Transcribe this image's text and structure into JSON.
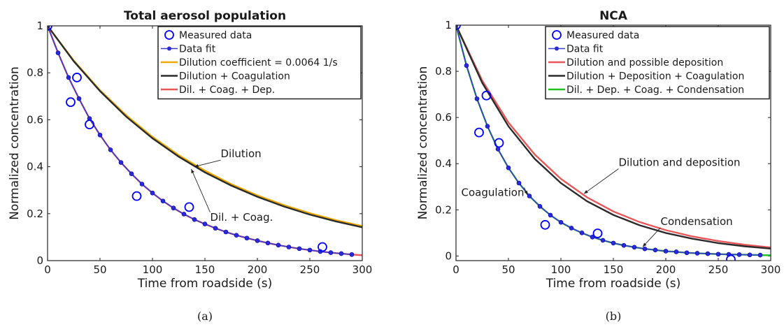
{
  "chart_data": [
    {
      "type": "line",
      "panel_label": "(a)",
      "title": "Total aerosol population",
      "xlabel": "Time from roadside (s)",
      "ylabel": "Normalized concentration",
      "xlim": [
        0,
        300
      ],
      "ylim": [
        0,
        1
      ],
      "xticks": [
        0,
        50,
        100,
        150,
        200,
        250,
        300
      ],
      "yticks": [
        0,
        0.2,
        0.4,
        0.6,
        0.8,
        1
      ],
      "ytick_labels": [
        "0",
        "0.2",
        "0.4",
        "0.6",
        "0.8",
        "1"
      ],
      "grid": false,
      "legend_position": "top-right",
      "series": [
        {
          "name": "Measured data",
          "kind": "marker",
          "color": "#0000ff",
          "x": [
            0,
            22,
            28,
            40,
            85,
            135,
            262
          ],
          "y": [
            1.0,
            0.675,
            0.78,
            0.58,
            0.275,
            0.228,
            0.058
          ]
        },
        {
          "name": "Data fit",
          "kind": "line-dots",
          "color": "#3a3acf",
          "x": [
            0,
            10,
            20,
            30,
            40,
            50,
            60,
            70,
            80,
            90,
            100,
            110,
            120,
            130,
            140,
            150,
            160,
            170,
            180,
            190,
            200,
            210,
            220,
            230,
            240,
            250,
            260,
            270,
            280,
            290
          ],
          "y": [
            1.0,
            0.885,
            0.78,
            0.69,
            0.605,
            0.535,
            0.472,
            0.418,
            0.37,
            0.326,
            0.288,
            0.254,
            0.224,
            0.198,
            0.175,
            0.156,
            0.138,
            0.122,
            0.108,
            0.096,
            0.085,
            0.075,
            0.066,
            0.058,
            0.051,
            0.045,
            0.039,
            0.034,
            0.03,
            0.026
          ]
        },
        {
          "name": "Dilution coefficient = 0.0064 1/s",
          "kind": "line",
          "color": "#f0a800",
          "x": [
            0,
            25,
            50,
            75,
            100,
            125,
            150,
            175,
            200,
            225,
            250,
            275,
            300
          ],
          "y": [
            1.0,
            0.852,
            0.726,
            0.619,
            0.527,
            0.449,
            0.383,
            0.326,
            0.278,
            0.237,
            0.202,
            0.172,
            0.147
          ]
        },
        {
          "name": "Dilution + Coagulation",
          "kind": "line",
          "color": "#2b2b2b",
          "x": [
            0,
            25,
            50,
            75,
            100,
            125,
            150,
            175,
            200,
            225,
            250,
            275,
            300
          ],
          "y": [
            1.0,
            0.849,
            0.722,
            0.613,
            0.521,
            0.443,
            0.376,
            0.32,
            0.272,
            0.231,
            0.196,
            0.167,
            0.142
          ]
        },
        {
          "name": "Dil. + Coag. + Dep.",
          "kind": "line",
          "color": "#e8585a",
          "x": [
            0,
            10,
            20,
            30,
            40,
            50,
            60,
            70,
            80,
            90,
            100,
            110,
            120,
            130,
            140,
            150,
            160,
            170,
            180,
            190,
            200,
            210,
            220,
            230,
            240,
            250,
            260,
            270,
            280,
            290,
            300
          ],
          "y": [
            1.0,
            0.885,
            0.78,
            0.69,
            0.605,
            0.535,
            0.472,
            0.418,
            0.37,
            0.326,
            0.288,
            0.254,
            0.224,
            0.198,
            0.175,
            0.156,
            0.138,
            0.122,
            0.108,
            0.096,
            0.085,
            0.075,
            0.066,
            0.058,
            0.051,
            0.045,
            0.039,
            0.034,
            0.03,
            0.026,
            0.023
          ]
        }
      ],
      "annotations": [
        {
          "text": "Dilution",
          "text_x": 165,
          "text_y": 0.44,
          "arrow_to_x": 140,
          "arrow_to_y": 0.4
        },
        {
          "text": "Dil. + Coag.",
          "text_x": 155,
          "text_y": 0.17,
          "arrow_to_x": 137,
          "arrow_to_y": 0.39
        }
      ]
    },
    {
      "type": "line",
      "panel_label": "(b)",
      "title": "NCA",
      "xlabel": "Time from roadside (s)",
      "ylabel": "Normalized concentration",
      "xlim": [
        0,
        300
      ],
      "ylim": [
        -0.02,
        1
      ],
      "xticks": [
        0,
        50,
        100,
        150,
        200,
        250,
        300
      ],
      "yticks": [
        0,
        0.2,
        0.4,
        0.6,
        0.8,
        1
      ],
      "ytick_labels": [
        "0",
        "0.2",
        "0.4",
        "0.6",
        "0.8",
        "1"
      ],
      "grid": false,
      "legend_position": "top-right",
      "series": [
        {
          "name": "Measured data",
          "kind": "marker",
          "color": "#0000ff",
          "x": [
            0,
            22,
            29,
            41,
            85,
            135,
            262
          ],
          "y": [
            1.0,
            0.535,
            0.695,
            0.49,
            0.135,
            0.098,
            -0.015
          ]
        },
        {
          "name": "Data fit",
          "kind": "line-dots",
          "color": "#3a3acf",
          "x": [
            0,
            10,
            20,
            30,
            40,
            50,
            60,
            70,
            80,
            90,
            100,
            110,
            120,
            130,
            140,
            150,
            160,
            170,
            180,
            190,
            200,
            210,
            220,
            230,
            240,
            250,
            260,
            270,
            280,
            290
          ],
          "y": [
            1.0,
            0.825,
            0.681,
            0.562,
            0.463,
            0.382,
            0.316,
            0.26,
            0.215,
            0.177,
            0.146,
            0.121,
            0.1,
            0.082,
            0.068,
            0.056,
            0.046,
            0.038,
            0.031,
            0.026,
            0.021,
            0.018,
            0.014,
            0.012,
            0.01,
            0.008,
            0.007,
            0.006,
            0.005,
            0.004
          ]
        },
        {
          "name": "Dilution and possible deposition",
          "kind": "line",
          "color": "#e8585a",
          "x": [
            0,
            25,
            50,
            75,
            100,
            125,
            150,
            175,
            200,
            225,
            250,
            275,
            300
          ],
          "y": [
            1.0,
            0.76,
            0.578,
            0.44,
            0.334,
            0.254,
            0.193,
            0.147,
            0.112,
            0.085,
            0.065,
            0.049,
            0.037
          ]
        },
        {
          "name": "Dilution + Deposition + Coagulation",
          "kind": "line",
          "color": "#2b2b2b",
          "x": [
            0,
            25,
            50,
            75,
            100,
            125,
            150,
            175,
            200,
            225,
            250,
            275,
            300
          ],
          "y": [
            1.0,
            0.75,
            0.562,
            0.421,
            0.316,
            0.237,
            0.178,
            0.133,
            0.1,
            0.075,
            0.056,
            0.042,
            0.032
          ]
        },
        {
          "name": "Dil. + Dep. + Coag. + Condensation",
          "kind": "line",
          "color": "#22c022",
          "x": [
            0,
            10,
            20,
            30,
            40,
            50,
            60,
            70,
            80,
            90,
            100,
            110,
            120,
            130,
            140,
            150,
            160,
            170,
            180,
            190,
            200,
            210,
            220,
            230,
            240,
            250,
            260,
            270,
            280,
            290,
            300
          ],
          "y": [
            1.0,
            0.825,
            0.681,
            0.562,
            0.463,
            0.382,
            0.316,
            0.26,
            0.215,
            0.177,
            0.146,
            0.121,
            0.1,
            0.082,
            0.068,
            0.056,
            0.046,
            0.038,
            0.031,
            0.026,
            0.021,
            0.018,
            0.014,
            0.012,
            0.01,
            0.008,
            0.007,
            0.006,
            0.005,
            0.004,
            0.003
          ]
        }
      ],
      "annotations": [
        {
          "text": "Dilution and deposition",
          "text_x": 155,
          "text_y": 0.39,
          "arrow_to_x": 122,
          "arrow_to_y": 0.27
        },
        {
          "text": "Coagulation",
          "text_x": 5,
          "text_y": 0.26,
          "arrow_to_x": 68,
          "arrow_to_y": 0.265
        },
        {
          "text": "Condensation",
          "text_x": 195,
          "text_y": 0.135,
          "arrow_to_x": 178,
          "arrow_to_y": 0.04
        }
      ]
    }
  ]
}
